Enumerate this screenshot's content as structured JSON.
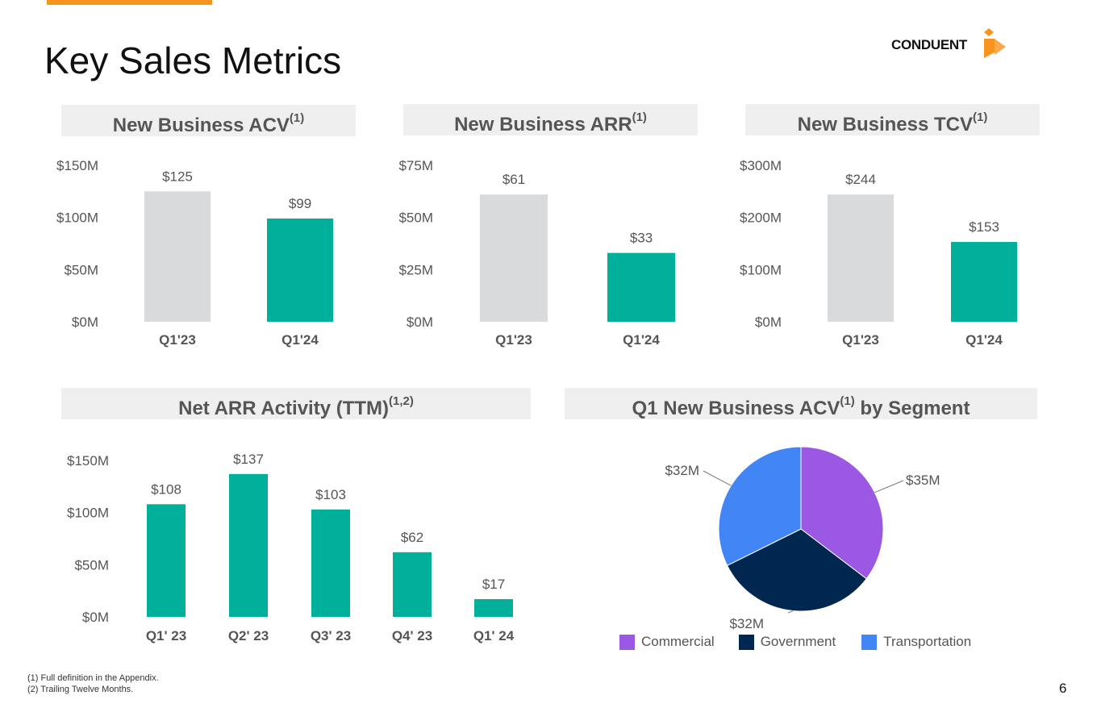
{
  "page_title": "Key Sales Metrics",
  "logo_text": "CONDUENT",
  "page_number": "6",
  "footnotes": [
    "(1) Full definition in the Appendix.",
    "(2) Trailing Twelve Months."
  ],
  "colors": {
    "teal": "#00B09B",
    "gray_bar": "#D9DADB",
    "accent": "#F7941D",
    "commercial": "#9B59E3",
    "government": "#002750",
    "transportation": "#4285F4"
  },
  "panels": {
    "acv": {
      "title": "New Business ACV",
      "sup": "(1)"
    },
    "arr": {
      "title": "New Business ARR",
      "sup": "(1)"
    },
    "tcv": {
      "title": "New Business TCV",
      "sup": "(1)"
    },
    "net": {
      "title": "Net ARR Activity (TTM)",
      "sup": "(1,2)"
    },
    "seg": {
      "title_pre": "Q1 New Business ACV",
      "sup": "(1)",
      "title_post": " by Segment"
    }
  },
  "chart_data": [
    {
      "id": "acv",
      "type": "bar",
      "title": "New Business ACV(1)",
      "categories": [
        "Q1'23",
        "Q1'24"
      ],
      "values": [
        125,
        99
      ],
      "labels": [
        "$125",
        "$99"
      ],
      "bar_colors": [
        "#D9DADB",
        "#00B09B"
      ],
      "yticks": [
        0,
        50,
        100,
        150
      ],
      "ytick_labels": [
        "$0M",
        "$50M",
        "$100M",
        "$150M"
      ],
      "ylim": [
        0,
        150
      ]
    },
    {
      "id": "arr",
      "type": "bar",
      "title": "New Business ARR(1)",
      "categories": [
        "Q1'23",
        "Q1'24"
      ],
      "values": [
        61,
        33
      ],
      "labels": [
        "$61",
        "$33"
      ],
      "bar_colors": [
        "#D9DADB",
        "#00B09B"
      ],
      "yticks": [
        0,
        25,
        50,
        75
      ],
      "ytick_labels": [
        "$0M",
        "$25M",
        "$50M",
        "$75M"
      ],
      "ylim": [
        0,
        75
      ]
    },
    {
      "id": "tcv",
      "type": "bar",
      "title": "New Business TCV(1)",
      "categories": [
        "Q1'23",
        "Q1'24"
      ],
      "values": [
        244,
        153
      ],
      "labels": [
        "$244",
        "$153"
      ],
      "bar_colors": [
        "#D9DADB",
        "#00B09B"
      ],
      "yticks": [
        0,
        100,
        200,
        300
      ],
      "ytick_labels": [
        "$0M",
        "$100M",
        "$200M",
        "$300M"
      ],
      "ylim": [
        0,
        300
      ]
    },
    {
      "id": "net",
      "type": "bar",
      "title": "Net ARR Activity (TTM)(1,2)",
      "categories": [
        "Q1' 23",
        "Q2' 23",
        "Q3' 23",
        "Q4' 23",
        "Q1' 24"
      ],
      "values": [
        108,
        137,
        103,
        62,
        17
      ],
      "labels": [
        "$108",
        "$137",
        "$103",
        "$62",
        "$17"
      ],
      "bar_colors": [
        "#00B09B",
        "#00B09B",
        "#00B09B",
        "#00B09B",
        "#00B09B"
      ],
      "yticks": [
        0,
        50,
        100,
        150
      ],
      "ytick_labels": [
        "$0M",
        "$50M",
        "$100M",
        "$150M"
      ],
      "ylim": [
        0,
        150
      ]
    },
    {
      "id": "seg",
      "type": "pie",
      "title": "Q1 New Business ACV(1) by Segment",
      "slices": [
        {
          "name": "Commercial",
          "value": 35,
          "label": "$35M",
          "color": "#9B59E3"
        },
        {
          "name": "Government",
          "value": 32,
          "label": "$32M",
          "color": "#002750"
        },
        {
          "name": "Transportation",
          "value": 32,
          "label": "$32M",
          "color": "#4285F4"
        }
      ],
      "legend": [
        "Commercial",
        "Government",
        "Transportation"
      ]
    }
  ]
}
